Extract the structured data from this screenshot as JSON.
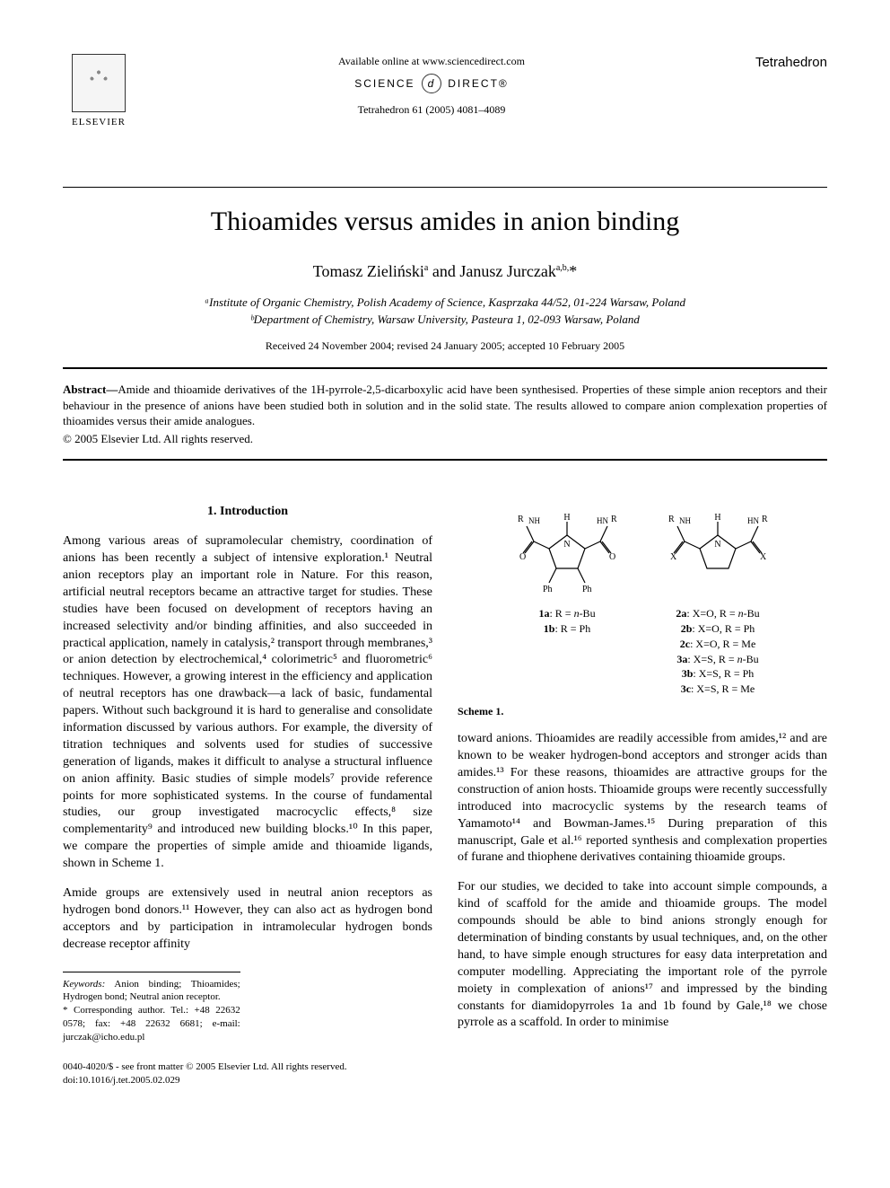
{
  "header": {
    "publisher": "ELSEVIER",
    "available": "Available online at www.sciencedirect.com",
    "sd_left": "SCIENCE",
    "sd_right": "DIRECT®",
    "citation": "Tetrahedron 61 (2005) 4081–4089",
    "journal": "Tetrahedron"
  },
  "title": "Thioamides versus amides in anion binding",
  "authors_html": "Tomasz Zieliński<sup>a</sup> and Janusz Jurczak<sup>a,b,</sup>*",
  "affiliations": [
    "ᵃInstitute of Organic Chemistry, Polish Academy of Science, Kasprzaka 44/52, 01-224 Warsaw, Poland",
    "ᵇDepartment of Chemistry, Warsaw University, Pasteura 1, 02-093 Warsaw, Poland"
  ],
  "dates": "Received 24 November 2004; revised 24 January 2005; accepted 10 February 2005",
  "abstract": "Amide and thioamide derivatives of the 1H-pyrrole-2,5-dicarboxylic acid have been synthesised. Properties of these simple anion receptors and their behaviour in the presence of anions have been studied both in solution and in the solid state. The results allowed to compare anion complexation properties of thioamides versus their amide analogues.",
  "copyright": "© 2005 Elsevier Ltd. All rights reserved.",
  "section1_head": "1. Introduction",
  "left_paras": [
    "Among various areas of supramolecular chemistry, coordination of anions has been recently a subject of intensive exploration.¹ Neutral anion receptors play an important role in Nature. For this reason, artificial neutral receptors became an attractive target for studies. These studies have been focused on development of receptors having an increased selectivity and/or binding affinities, and also succeeded in practical application, namely in catalysis,² transport through membranes,³ or anion detection by electrochemical,⁴ colorimetric⁵ and fluorometric⁶ techniques. However, a growing interest in the efficiency and application of neutral receptors has one drawback—a lack of basic, fundamental papers. Without such background it is hard to generalise and consolidate information discussed by various authors. For example, the diversity of titration techniques and solvents used for studies of successive generation of ligands, makes it difficult to analyse a structural influence on anion affinity. Basic studies of simple models⁷ provide reference points for more sophisticated systems. In the course of fundamental studies, our group investigated macrocyclic effects,⁸ size complementarity⁹ and introduced new building blocks.¹⁰ In this paper, we compare the properties of simple amide and thioamide ligands, shown in Scheme 1.",
    "Amide groups are extensively used in neutral anion receptors as hydrogen bond donors.¹¹ However, they can also act as hydrogen bond acceptors and by participation in intramolecular hydrogen bonds decrease receptor affinity"
  ],
  "scheme": {
    "left_labels": [
      "1a: R = n-Bu",
      "1b: R = Ph"
    ],
    "right_labels": [
      "2a: X=O, R = n-Bu",
      "2b: X=O, R = Ph",
      "2c: X=O, R = Me",
      "3a: X=S, R = n-Bu",
      "3b: X=S, R = Ph",
      "3c: X=S, R = Me"
    ],
    "caption": "Scheme 1."
  },
  "right_paras": [
    "toward anions. Thioamides are readily accessible from amides,¹² and are known to be weaker hydrogen-bond acceptors and stronger acids than amides.¹³ For these reasons, thioamides are attractive groups for the construction of anion hosts. Thioamide groups were recently successfully introduced into macrocyclic systems by the research teams of Yamamoto¹⁴ and Bowman-James.¹⁵ During preparation of this manuscript, Gale et al.¹⁶ reported synthesis and complexation properties of furane and thiophene derivatives containing thioamide groups.",
    "For our studies, we decided to take into account simple compounds, a kind of scaffold for the amide and thioamide groups. The model compounds should be able to bind anions strongly enough for determination of binding constants by usual techniques, and, on the other hand, to have simple enough structures for easy data interpretation and computer modelling. Appreciating the important role of the pyrrole moiety in complexation of anions¹⁷ and impressed by the binding constants for diamidopyrroles 1a and 1b found by Gale,¹⁸ we chose pyrrole as a scaffold. In order to minimise"
  ],
  "footnotes": {
    "keywords_label": "Keywords:",
    "keywords": "Anion binding; Thioamides; Hydrogen bond; Neutral anion receptor.",
    "corresponding": "* Corresponding author. Tel.: +48 22632 0578; fax: +48 22632 6681; e-mail: jurczak@icho.edu.pl"
  },
  "bottom": {
    "line1": "0040-4020/$ - see front matter © 2005 Elsevier Ltd. All rights reserved.",
    "line2": "doi:10.1016/j.tet.2005.02.029"
  },
  "colors": {
    "text": "#000000",
    "bg": "#ffffff",
    "rule": "#000000"
  }
}
